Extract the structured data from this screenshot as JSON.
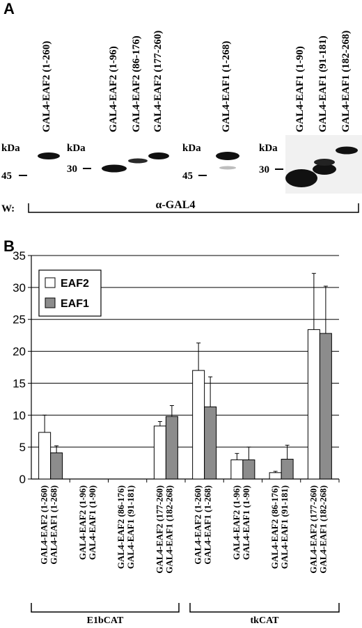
{
  "panel_a": {
    "letter": "A",
    "western_label": "W:",
    "antibody": "α-GAL4",
    "lane_labels": [
      "GAL4-EAF2 (1-260)",
      "GAL4-EAF2 (1-96)",
      "GAL4-EAF2 (86-176)",
      "GAL4-EAF2 (177-260)",
      "GAL4-EAF1 (1-268)",
      "GAL4-EAF1 (1-90)",
      "GAL4-EAF1 (91-181)",
      "GAL4-EAF1 (182-268)"
    ],
    "kda_label": "kDa",
    "markers": [
      "45",
      "30",
      "45",
      "30"
    ]
  },
  "panel_b": {
    "letter": "B",
    "legend": [
      "EAF2",
      "EAF1"
    ],
    "group_labels": [
      "E1bCAT",
      "tkCAT"
    ],
    "category_labels": [
      [
        "GAL4-EAF2 (1-260)",
        "GAL4-EAF1 (1-268)"
      ],
      [
        "GAL4-EAF2 (1-96)",
        "GAL4-EAF1 (1-90)"
      ],
      [
        "GAL4-EAF2 (86-176)",
        "GAL4-EAF1 (91-181)"
      ],
      [
        "GAL4-EAF2 (177-260)",
        "GAL4-EAF1 (182-268)"
      ],
      [
        "GAL4-EAF2 (1-260)",
        "GAL4-EAF1 (1-268)"
      ],
      [
        "GAL4-EAF2 (1-96)",
        "GAL4-EAF1 (1-90)"
      ],
      [
        "GAL4-EAF2 (86-176)",
        "GAL4-EAF1 (91-181)"
      ],
      [
        "GAL4-EAF2 (177-260)",
        "GAL4-EAF1 (182-268)"
      ]
    ]
  },
  "chart_data": {
    "type": "bar",
    "ylim": [
      0,
      35
    ],
    "yticks": [
      0,
      5,
      10,
      15,
      20,
      25,
      30,
      35
    ],
    "grid": true,
    "legend_position": "top-left",
    "series": [
      {
        "name": "EAF2",
        "color": "#ffffff",
        "values": [
          7.3,
          0,
          0,
          8.3,
          17.0,
          3.0,
          1.0,
          23.4
        ],
        "errors": [
          2.7,
          0,
          0,
          0.7,
          4.3,
          1.0,
          0.2,
          8.8
        ]
      },
      {
        "name": "EAF1",
        "color": "#8c8c8c",
        "values": [
          4.1,
          0,
          0,
          9.8,
          11.3,
          3.0,
          3.1,
          22.8
        ],
        "errors": [
          1.1,
          0,
          0,
          1.7,
          4.7,
          2.0,
          2.2,
          7.4
        ]
      }
    ]
  }
}
